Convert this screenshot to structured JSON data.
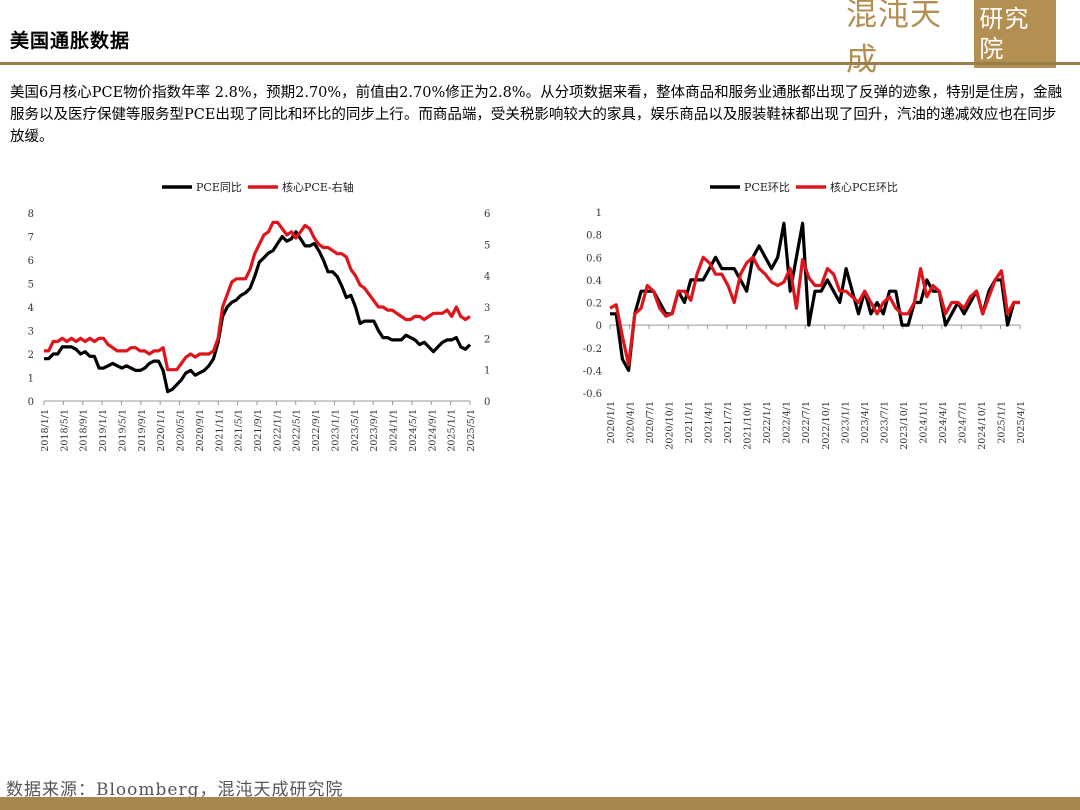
{
  "page": {
    "title": "美国通胀数据",
    "logo_text": "混沌天成",
    "logo_boxed_text": "研究院",
    "summary": "美国6月核心PCE物价指数年率 2.8%，预期2.70%，前值由2.70%修正为2.8%。从分项数据来看，整体商品和服务业通胀都出现了反弹的迹象，特别是住房，金融服务以及医疗保健等服务型PCE出现了同比和环比的同步上行。而商品端，受关税影响较大的家具，娱乐商品以及服装鞋袜都出现了回升，汽油的递减效应也在同步放缓。",
    "source": "数据来源：Bloomberg，混沌天成研究院"
  },
  "colors": {
    "black": "#000000",
    "red": "#e0141b",
    "gold": "#b38f52"
  },
  "chart_data": [
    {
      "type": "line",
      "title": "",
      "xlabel": "",
      "ylabel": "",
      "x_tick_labels": [
        "2018/1/1",
        "2018/5/1",
        "2018/9/1",
        "2019/1/1",
        "2019/5/1",
        "2019/9/1",
        "2020/1/1",
        "2020/5/1",
        "2020/9/1",
        "2021/1/1",
        "2021/5/1",
        "2021/9/1",
        "2022/1/1",
        "2022/5/1",
        "2022/9/1",
        "2023/1/1",
        "2023/5/1",
        "2023/9/1",
        "2024/1/1",
        "2024/5/1",
        "2024/9/1",
        "2025/1/1",
        "2025/5/1"
      ],
      "ylim_left": [
        0,
        8
      ],
      "ylim_right": [
        0,
        6
      ],
      "y_ticks_left": [
        "0",
        "1",
        "2",
        "3",
        "4",
        "5",
        "6",
        "7",
        "8"
      ],
      "y_ticks_right": [
        "0",
        "1",
        "2",
        "3",
        "4",
        "5",
        "6"
      ],
      "legend_position": "top",
      "grid": false,
      "series": [
        {
          "name": "PCE同比",
          "color": "#000000",
          "axis": "left",
          "values": [
            1.8,
            1.8,
            2.0,
            2.0,
            2.3,
            2.3,
            2.3,
            2.2,
            2.0,
            2.1,
            1.9,
            1.9,
            1.4,
            1.4,
            1.5,
            1.6,
            1.5,
            1.4,
            1.5,
            1.4,
            1.3,
            1.3,
            1.4,
            1.6,
            1.7,
            1.7,
            1.3,
            0.4,
            0.5,
            0.7,
            0.9,
            1.2,
            1.3,
            1.1,
            1.2,
            1.3,
            1.5,
            1.8,
            2.5,
            3.6,
            4.0,
            4.2,
            4.3,
            4.5,
            4.6,
            4.8,
            5.3,
            5.9,
            6.1,
            6.3,
            6.4,
            6.7,
            7.0,
            6.8,
            6.9,
            7.2,
            6.9,
            6.6,
            6.6,
            6.7,
            6.4,
            6.0,
            5.5,
            5.5,
            5.3,
            4.9,
            4.4,
            4.5,
            4.0,
            3.3,
            3.4,
            3.4,
            3.4,
            3.0,
            2.7,
            2.7,
            2.6,
            2.6,
            2.6,
            2.8,
            2.7,
            2.6,
            2.4,
            2.5,
            2.3,
            2.1,
            2.3,
            2.5,
            2.6,
            2.6,
            2.7,
            2.3,
            2.2,
            2.4
          ],
          "dates_start": "2018/1"
        },
        {
          "name": "核心PCE-右轴",
          "color": "#e0141b",
          "axis": "right",
          "values": [
            1.6,
            1.6,
            1.9,
            1.9,
            2.0,
            1.9,
            2.0,
            1.9,
            2.0,
            1.9,
            2.0,
            1.9,
            2.0,
            2.0,
            1.8,
            1.7,
            1.6,
            1.6,
            1.6,
            1.7,
            1.7,
            1.6,
            1.6,
            1.5,
            1.6,
            1.6,
            1.7,
            1.0,
            1.0,
            1.0,
            1.2,
            1.4,
            1.5,
            1.4,
            1.5,
            1.5,
            1.5,
            1.6,
            2.0,
            3.0,
            3.4,
            3.8,
            3.9,
            3.9,
            3.9,
            4.2,
            4.7,
            5.0,
            5.3,
            5.4,
            5.7,
            5.7,
            5.5,
            5.3,
            5.4,
            5.2,
            5.4,
            5.6,
            5.5,
            5.2,
            5.0,
            4.9,
            4.9,
            4.8,
            4.7,
            4.7,
            4.6,
            4.2,
            4.0,
            3.7,
            3.6,
            3.4,
            3.2,
            3.0,
            3.0,
            2.9,
            2.9,
            2.8,
            2.7,
            2.6,
            2.6,
            2.7,
            2.7,
            2.6,
            2.7,
            2.8,
            2.8,
            2.8,
            2.9,
            2.7,
            3.0,
            2.7,
            2.6,
            2.7
          ],
          "dates_start": "2018/1"
        }
      ]
    },
    {
      "type": "line",
      "title": "",
      "xlabel": "",
      "ylabel": "",
      "x_tick_labels": [
        "2020/1/1",
        "2020/4/1",
        "2020/7/1",
        "2020/10/1",
        "2021/1/1",
        "2021/4/1",
        "2021/7/1",
        "2021/10/1",
        "2022/1/1",
        "2022/4/1",
        "2022/7/1",
        "2022/10/1",
        "2023/1/1",
        "2023/4/1",
        "2023/7/1",
        "2023/10/1",
        "2024/1/1",
        "2024/4/1",
        "2024/7/1",
        "2024/10/1",
        "2025/1/1",
        "2025/4/1"
      ],
      "ylim": [
        -0.6,
        1
      ],
      "y_ticks": [
        "-0.6",
        "-0.4",
        "-0.2",
        "0",
        "0.2",
        "0.4",
        "0.6",
        "0.8",
        "1"
      ],
      "legend_position": "top",
      "grid": false,
      "series": [
        {
          "name": "PCE环比",
          "color": "#000000",
          "values": [
            0.1,
            0.1,
            -0.3,
            -0.4,
            0.1,
            0.3,
            0.3,
            0.3,
            0.2,
            0.1,
            0.1,
            0.3,
            0.2,
            0.4,
            0.4,
            0.4,
            0.5,
            0.6,
            0.5,
            0.5,
            0.5,
            0.4,
            0.3,
            0.6,
            0.7,
            0.6,
            0.5,
            0.6,
            0.9,
            0.3,
            0.6,
            0.9,
            0.0,
            0.3,
            0.3,
            0.4,
            0.3,
            0.2,
            0.5,
            0.3,
            0.1,
            0.3,
            0.1,
            0.2,
            0.1,
            0.3,
            0.3,
            0.0,
            0.0,
            0.2,
            0.2,
            0.4,
            0.3,
            0.3,
            0.0,
            0.1,
            0.2,
            0.1,
            0.2,
            0.3,
            0.1,
            0.3,
            0.4,
            0.4,
            0.0,
            0.2,
            0.2
          ],
          "dates_start": "2020/1"
        },
        {
          "name": "核心PCE环比",
          "color": "#e0141b",
          "values": [
            0.15,
            0.18,
            -0.1,
            -0.35,
            0.1,
            0.15,
            0.35,
            0.3,
            0.15,
            0.08,
            0.1,
            0.3,
            0.3,
            0.22,
            0.45,
            0.6,
            0.55,
            0.45,
            0.45,
            0.35,
            0.2,
            0.45,
            0.55,
            0.6,
            0.5,
            0.45,
            0.38,
            0.35,
            0.38,
            0.5,
            0.15,
            0.58,
            0.42,
            0.35,
            0.35,
            0.5,
            0.45,
            0.3,
            0.3,
            0.25,
            0.2,
            0.3,
            0.2,
            0.1,
            0.2,
            0.25,
            0.15,
            0.1,
            0.1,
            0.2,
            0.5,
            0.25,
            0.35,
            0.3,
            0.1,
            0.2,
            0.2,
            0.15,
            0.25,
            0.3,
            0.1,
            0.25,
            0.4,
            0.48,
            0.1,
            0.2,
            0.2
          ],
          "dates_start": "2020/1"
        }
      ]
    }
  ]
}
